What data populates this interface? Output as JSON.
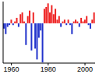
{
  "chart_data": {
    "type": "bar",
    "x": [
      1956,
      1957,
      1958,
      1959,
      1960,
      1961,
      1962,
      1963,
      1964,
      1965,
      1966,
      1967,
      1968,
      1969,
      1970,
      1971,
      1972,
      1973,
      1974,
      1975,
      1976,
      1977,
      1978,
      1979,
      1980,
      1981,
      1982,
      1983,
      1984,
      1985,
      1986,
      1987,
      1988,
      1989,
      1990,
      1991,
      1992,
      1993,
      1994,
      1995,
      1996,
      1997,
      1998,
      1999,
      2000,
      2001,
      2002,
      2003,
      2004,
      2005
    ],
    "values": [
      -0.15,
      -0.3,
      -0.1,
      -0.05,
      0.1,
      -0.05,
      0.05,
      0.15,
      -0.1,
      0.25,
      0.3,
      0.05,
      -0.6,
      0.2,
      0.35,
      -0.75,
      0.3,
      -0.7,
      -1.0,
      -0.4,
      -0.2,
      -1.08,
      0.4,
      0.45,
      0.55,
      0.3,
      0.5,
      0.25,
      0.4,
      0.1,
      0.2,
      -0.1,
      0.05,
      0.1,
      -0.05,
      0.1,
      -0.05,
      -0.3,
      0.05,
      0.1,
      0.05,
      -0.1,
      0.15,
      0.05,
      0.1,
      0.2,
      -0.05,
      -0.15,
      0.1,
      0.3
    ],
    "colors": [
      "#2233cc",
      "#2233cc",
      "#2233cc",
      "#2233cc",
      "#ee2222",
      "#2233cc",
      "#ee2222",
      "#ee2222",
      "#2233cc",
      "#ee2222",
      "#ee2222",
      "#ee2222",
      "#2233cc",
      "#ee2222",
      "#ee2222",
      "#2233cc",
      "#ee2222",
      "#2233cc",
      "#2233cc",
      "#2233cc",
      "#2233cc",
      "#2233cc",
      "#ee2222",
      "#ee2222",
      "#ee2222",
      "#ee2222",
      "#ee2222",
      "#ee2222",
      "#ee2222",
      "#ee2222",
      "#ee2222",
      "#2233cc",
      "#ee2222",
      "#ee2222",
      "#2233cc",
      "#ee2222",
      "#2233cc",
      "#2233cc",
      "#ee2222",
      "#ee2222",
      "#ee2222",
      "#2233cc",
      "#ee2222",
      "#ee2222",
      "#ee2222",
      "#ee2222",
      "#2233cc",
      "#2233cc",
      "#ee2222",
      "#ee2222"
    ],
    "xlim": [
      1955.5,
      2005.5
    ],
    "xticks": [
      1960,
      1980,
      2000
    ],
    "ylim": [
      -1.1,
      0.6
    ],
    "yticks": [
      -1,
      -0.5,
      0,
      0.5
    ],
    "tick_labels": "x",
    "grid": false
  }
}
